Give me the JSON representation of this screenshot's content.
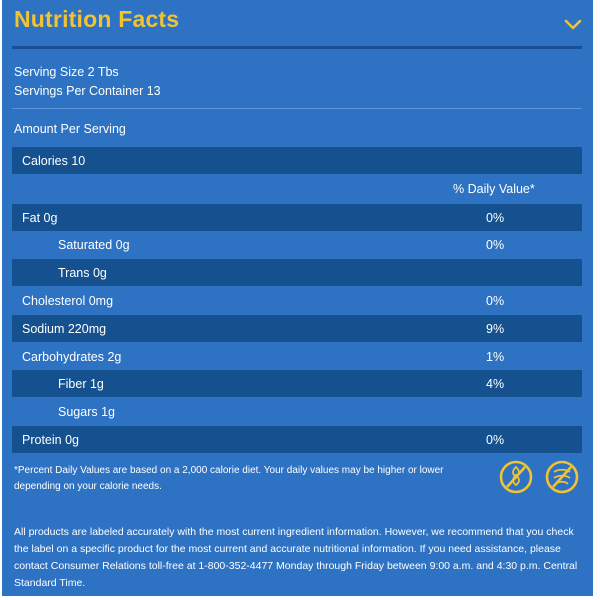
{
  "header": {
    "title": "Nutrition Facts",
    "toggle_icon": "chevron-down-icon"
  },
  "serving": {
    "size": "Serving Size 2 Tbs",
    "per_container": "Servings Per Container 13"
  },
  "amount_label": "Amount Per Serving",
  "calories": "Calories 10",
  "daily_value_header": "% Daily Value*",
  "nutrients": [
    {
      "name": "Fat 0g",
      "pct": "0%"
    },
    {
      "name": "Saturated 0g",
      "pct": "0%"
    },
    {
      "name": "Trans 0g",
      "pct": ""
    },
    {
      "name": "Cholesterol 0mg",
      "pct": "0%"
    },
    {
      "name": "Sodium 220mg",
      "pct": "9%"
    },
    {
      "name": "Carbohydrates 2g",
      "pct": "1%"
    },
    {
      "name": "Fiber 1g",
      "pct": "4%"
    },
    {
      "name": "Sugars 1g",
      "pct": ""
    },
    {
      "name": "Protein 0g",
      "pct": "0%"
    }
  ],
  "footnote": "*Percent Daily Values are based on a 2,000 calorie diet. Your daily values may be higher or lower depending on your calorie needs.",
  "badges": [
    "gluten-free-icon",
    "gluten-free-icon"
  ],
  "disclaimer": "All products are labeled accurately with the most current ingredient information. However, we recommend that you check the label on a specific product for the most current and accurate nutritional information. If you need assistance, please contact Consumer Relations toll-free at 1-800-352-4477 Monday through Friday between 9:00 a.m. and 4:30 p.m. Central Standard Time.",
  "colors": {
    "panel": "#2d72c3",
    "row_dark": "#15508f",
    "title": "#f1c232",
    "badge": "#f1c232"
  }
}
